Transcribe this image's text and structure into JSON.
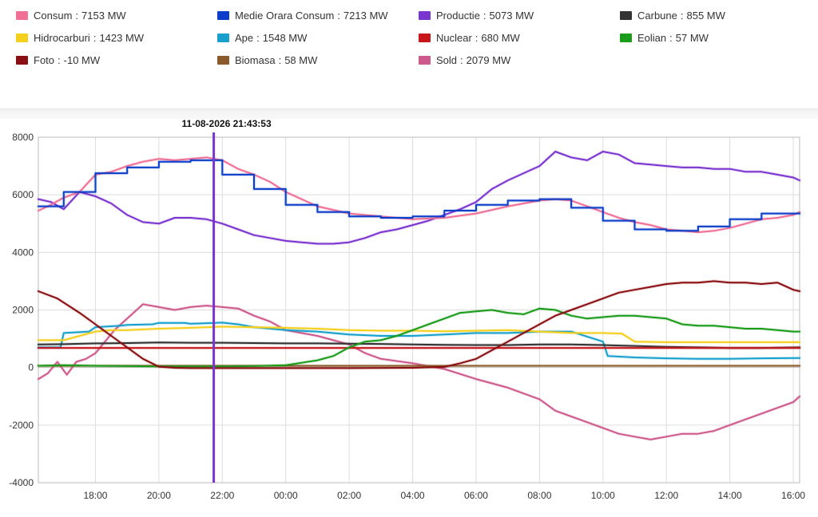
{
  "legend": {
    "items": [
      {
        "name": "Consum",
        "value": "7153 MW",
        "color": "#f06f95"
      },
      {
        "name": "Medie Orara Consum",
        "value": "7213 MW",
        "color": "#0b3fc9"
      },
      {
        "name": "Productie",
        "value": "5073 MW",
        "color": "#7b35cf"
      },
      {
        "name": "Carbune",
        "value": "855 MW",
        "color": "#333333"
      },
      {
        "name": "Hidrocarburi",
        "value": "1423 MW",
        "color": "#f4cf1c"
      },
      {
        "name": "Ape",
        "value": "1548 MW",
        "color": "#17a0cc"
      },
      {
        "name": "Nuclear",
        "value": "680 MW",
        "color": "#c8171b"
      },
      {
        "name": "Eolian",
        "value": "57 MW",
        "color": "#1a9b1a"
      },
      {
        "name": "Foto",
        "value": "-10 MW",
        "color": "#8a0f12"
      },
      {
        "name": "Biomasa",
        "value": "58 MW",
        "color": "#8a5a2b"
      },
      {
        "name": "Sold",
        "value": "2079 MW",
        "color": "#cd5a8c"
      }
    ]
  },
  "cursor": {
    "label": "11-08-2026 21:43:53",
    "time": 21.73,
    "color": "#7b35cf"
  },
  "chart_data": {
    "type": "line",
    "x_unit": "hour",
    "xlim": [
      16.2,
      40.2
    ],
    "ylim": [
      -4000,
      8000
    ],
    "yticks": [
      -4000,
      -2000,
      0,
      2000,
      4000,
      6000,
      8000
    ],
    "ytick_labels": [
      "-4000",
      "-2000",
      "0",
      "2000",
      "4000",
      "6000",
      "8000"
    ],
    "xticks": [
      18,
      20,
      22,
      24,
      26,
      28,
      30,
      32,
      34,
      36,
      38,
      40
    ],
    "xtick_labels": [
      "18:00",
      "20:00",
      "22:00",
      "00:00",
      "02:00",
      "04:00",
      "06:00",
      "08:00",
      "10:00",
      "12:00",
      "14:00",
      "16:00"
    ],
    "grid": true,
    "series": [
      {
        "name": "Sold",
        "color": "#cd5a8c",
        "x": [
          16.2,
          16.5,
          16.8,
          17.1,
          17.4,
          17.7,
          18.0,
          18.3,
          18.6,
          19.0,
          19.5,
          20.0,
          20.5,
          21.0,
          21.5,
          22.0,
          22.5,
          23.0,
          23.5,
          24.0,
          24.5,
          25.0,
          25.5,
          26.0,
          26.5,
          27.0,
          28.0,
          29.0,
          30.0,
          31.0,
          32.0,
          32.5,
          33.0,
          33.5,
          34.0,
          34.5,
          35.0,
          35.5,
          36.0,
          36.5,
          37.0,
          37.5,
          38.0,
          38.5,
          39.0,
          39.5,
          40.0,
          40.2
        ],
        "y": [
          -400,
          -200,
          200,
          -250,
          200,
          300,
          500,
          900,
          1300,
          1700,
          2200,
          2100,
          2000,
          2100,
          2150,
          2100,
          2050,
          1800,
          1600,
          1300,
          1200,
          1100,
          950,
          800,
          500,
          300,
          150,
          -50,
          -400,
          -700,
          -1100,
          -1500,
          -1700,
          -1900,
          -2100,
          -2300,
          -2400,
          -2500,
          -2400,
          -2300,
          -2300,
          -2200,
          -2000,
          -1800,
          -1600,
          -1400,
          -1200,
          -1000
        ]
      },
      {
        "name": "Ape",
        "color": "#17a0cc",
        "x": [
          16.2,
          16.9,
          17.0,
          17.8,
          18.0,
          18.8,
          19.0,
          19.8,
          20.0,
          20.8,
          21.0,
          22.0,
          22.5,
          23.0,
          24.0,
          25.0,
          26.0,
          27.0,
          28.0,
          29.0,
          30.0,
          31.0,
          32.0,
          33.0,
          34.0,
          34.15,
          35.0,
          36.0,
          37.0,
          38.0,
          39.0,
          40.2
        ],
        "y": [
          700,
          700,
          1200,
          1250,
          1400,
          1450,
          1480,
          1500,
          1550,
          1550,
          1520,
          1560,
          1500,
          1400,
          1300,
          1250,
          1150,
          1100,
          1100,
          1150,
          1200,
          1200,
          1250,
          1250,
          900,
          400,
          350,
          320,
          300,
          300,
          320,
          330
        ]
      },
      {
        "name": "Hidrocarburi",
        "color": "#f4cf1c",
        "x": [
          16.2,
          17.0,
          18.0,
          18.5,
          19.0,
          20.0,
          21.0,
          22.0,
          23.0,
          24.0,
          25.0,
          26.0,
          27.0,
          28.0,
          29.0,
          30.0,
          31.0,
          32.0,
          33.0,
          34.0,
          34.6,
          35.0,
          36.0,
          37.0,
          38.0,
          39.0,
          40.2
        ],
        "y": [
          950,
          950,
          1250,
          1300,
          1300,
          1350,
          1380,
          1420,
          1400,
          1380,
          1350,
          1300,
          1280,
          1280,
          1260,
          1280,
          1300,
          1250,
          1200,
          1200,
          1180,
          900,
          880,
          880,
          880,
          880,
          880
        ]
      },
      {
        "name": "Carbune",
        "color": "#333333",
        "x": [
          16.2,
          17.0,
          18.0,
          19.0,
          20.0,
          21.0,
          22.0,
          23.0,
          24.0,
          25.0,
          26.0,
          27.0,
          28.0,
          29.0,
          30.0,
          31.0,
          32.0,
          33.0,
          34.0,
          35.0,
          36.0,
          37.0,
          38.0,
          39.0,
          40.2
        ],
        "y": [
          800,
          810,
          840,
          850,
          870,
          860,
          860,
          850,
          840,
          840,
          830,
          820,
          800,
          790,
          780,
          780,
          800,
          800,
          780,
          750,
          720,
          700,
          680,
          680,
          700
        ]
      },
      {
        "name": "Nuclear",
        "color": "#c8171b",
        "x": [
          16.2,
          40.2
        ],
        "y": [
          680,
          680
        ]
      },
      {
        "name": "Biomasa",
        "color": "#8a5a2b",
        "x": [
          16.2,
          40.2
        ],
        "y": [
          60,
          60
        ]
      },
      {
        "name": "Eolian",
        "color": "#1a9b1a",
        "x": [
          16.2,
          17.0,
          18.0,
          19.0,
          20.0,
          21.0,
          22.0,
          23.0,
          24.0,
          25.0,
          25.5,
          26.0,
          26.5,
          27.0,
          27.5,
          28.0,
          28.5,
          29.0,
          29.5,
          30.0,
          30.5,
          31.0,
          31.5,
          32.0,
          32.5,
          33.0,
          33.5,
          34.0,
          34.5,
          35.0,
          35.5,
          36.0,
          36.5,
          37.0,
          37.5,
          38.0,
          38.5,
          39.0,
          39.5,
          40.0,
          40.2
        ],
        "y": [
          60,
          80,
          60,
          50,
          40,
          40,
          40,
          50,
          80,
          250,
          400,
          700,
          900,
          950,
          1100,
          1300,
          1500,
          1700,
          1900,
          1950,
          2000,
          1900,
          1850,
          2050,
          2000,
          1800,
          1700,
          1750,
          1800,
          1800,
          1750,
          1700,
          1500,
          1450,
          1450,
          1400,
          1350,
          1350,
          1300,
          1250,
          1250
        ]
      },
      {
        "name": "Foto",
        "color": "#8a0f12",
        "x": [
          16.2,
          16.8,
          17.5,
          18.0,
          18.5,
          19.0,
          19.5,
          20.0,
          20.5,
          21.0,
          22.0,
          24.0,
          26.0,
          28.0,
          29.0,
          29.5,
          30.0,
          30.5,
          31.0,
          31.5,
          32.0,
          32.5,
          33.0,
          33.5,
          34.0,
          34.5,
          35.0,
          35.5,
          36.0,
          36.5,
          37.0,
          37.5,
          38.0,
          38.5,
          39.0,
          39.5,
          40.0,
          40.2
        ],
        "y": [
          2650,
          2400,
          1900,
          1500,
          1100,
          700,
          300,
          30,
          -10,
          -20,
          -20,
          -20,
          -20,
          -10,
          20,
          150,
          300,
          600,
          900,
          1200,
          1500,
          1800,
          2000,
          2200,
          2400,
          2600,
          2700,
          2800,
          2900,
          2950,
          2950,
          3000,
          2950,
          2950,
          2900,
          2950,
          2700,
          2650
        ]
      },
      {
        "name": "Productie",
        "color": "#7b35cf",
        "x": [
          16.2,
          16.6,
          17.0,
          17.5,
          18.0,
          18.5,
          19.0,
          19.5,
          20.0,
          20.5,
          21.0,
          21.5,
          22.0,
          22.5,
          23.0,
          23.5,
          24.0,
          24.5,
          25.0,
          25.5,
          26.0,
          26.5,
          27.0,
          27.5,
          28.0,
          28.5,
          29.0,
          29.5,
          30.0,
          30.5,
          31.0,
          31.5,
          32.0,
          32.5,
          33.0,
          33.5,
          34.0,
          34.5,
          35.0,
          35.5,
          36.0,
          36.5,
          37.0,
          37.5,
          38.0,
          38.5,
          39.0,
          39.5,
          40.0,
          40.2
        ],
        "y": [
          5850,
          5750,
          5500,
          6100,
          5950,
          5700,
          5300,
          5050,
          5000,
          5200,
          5200,
          5150,
          5000,
          4800,
          4600,
          4500,
          4400,
          4350,
          4300,
          4300,
          4350,
          4500,
          4700,
          4800,
          4950,
          5100,
          5300,
          5500,
          5750,
          6200,
          6500,
          6750,
          7000,
          7500,
          7300,
          7200,
          7500,
          7400,
          7100,
          7050,
          7000,
          6950,
          6950,
          6900,
          6900,
          6800,
          6800,
          6700,
          6600,
          6500
        ]
      },
      {
        "name": "Consum",
        "color": "#f06f95",
        "x": [
          16.2,
          16.5,
          17.0,
          17.5,
          18.0,
          18.5,
          19.0,
          19.5,
          20.0,
          20.5,
          21.0,
          21.5,
          22.0,
          22.5,
          23.0,
          23.5,
          24.0,
          25.0,
          26.0,
          27.0,
          28.0,
          29.0,
          30.0,
          31.0,
          32.0,
          32.5,
          33.0,
          33.5,
          34.0,
          34.5,
          35.0,
          35.5,
          36.0,
          36.5,
          37.0,
          37.5,
          38.0,
          38.5,
          39.0,
          39.5,
          40.0,
          40.2
        ],
        "y": [
          5450,
          5600,
          5900,
          6100,
          6700,
          6800,
          7000,
          7150,
          7250,
          7200,
          7250,
          7300,
          7200,
          6900,
          6700,
          6450,
          6100,
          5600,
          5350,
          5250,
          5150,
          5200,
          5350,
          5600,
          5800,
          5850,
          5800,
          5600,
          5400,
          5200,
          5050,
          4950,
          4800,
          4750,
          4700,
          4750,
          4850,
          5000,
          5150,
          5200,
          5300,
          5400
        ]
      },
      {
        "name": "Medie Orara Consum",
        "color": "#0b3fc9",
        "step": true,
        "x": [
          16.2,
          17.0,
          18.0,
          19.0,
          20.0,
          21.0,
          22.0,
          23.0,
          24.0,
          25.0,
          26.0,
          27.0,
          28.0,
          29.0,
          30.0,
          31.0,
          32.0,
          33.0,
          34.0,
          35.0,
          36.0,
          37.0,
          38.0,
          39.0,
          40.0
        ],
        "y": [
          5600,
          6100,
          6750,
          6950,
          7150,
          7200,
          6700,
          6200,
          5650,
          5400,
          5250,
          5200,
          5250,
          5450,
          5650,
          5800,
          5850,
          5550,
          5100,
          4800,
          4750,
          4900,
          5150,
          5350,
          5350
        ]
      }
    ]
  }
}
